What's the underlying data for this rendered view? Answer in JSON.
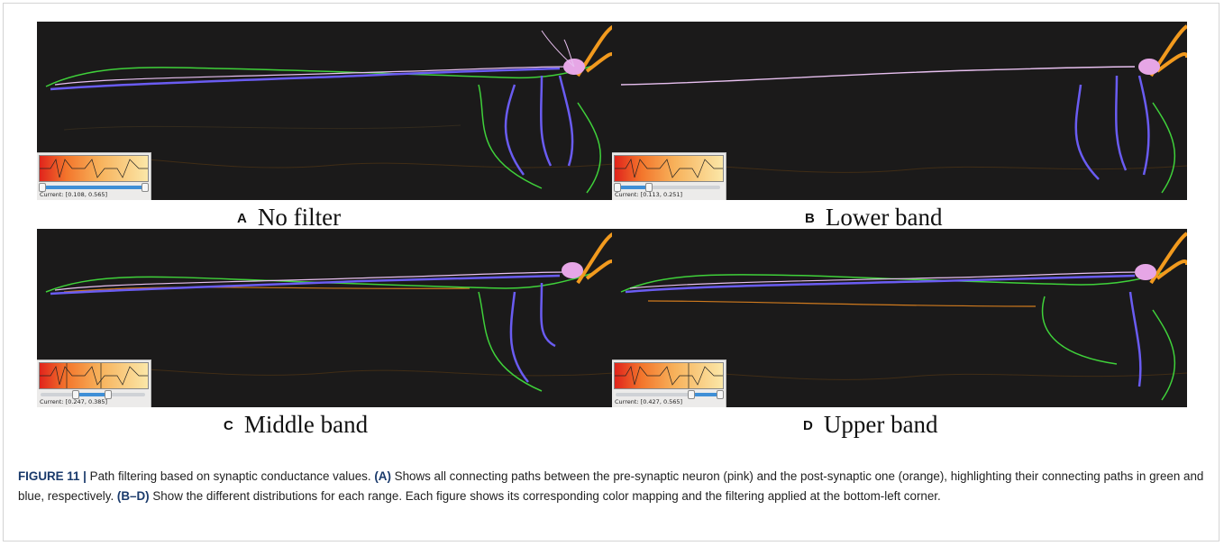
{
  "panels": [
    {
      "letter": "A",
      "title": "No filter",
      "current": "Current: [0.108, 0.565]",
      "range": [
        0.108,
        0.565
      ]
    },
    {
      "letter": "B",
      "title": "Lower band",
      "current": "Current: [0.113, 0.251]",
      "range": [
        0.113,
        0.251
      ]
    },
    {
      "letter": "C",
      "title": "Middle band",
      "current": "Current: [0.247, 0.385]",
      "range": [
        0.247,
        0.385
      ]
    },
    {
      "letter": "D",
      "title": "Upper band",
      "current": "Current: [0.427, 0.565]",
      "range": [
        0.427,
        0.565
      ]
    }
  ],
  "caption": {
    "figure_label": "FIGURE 11 |",
    "title": "Path filtering based on synaptic conductance values.",
    "ref_a": "(A)",
    "text_a": "Shows all connecting paths between the pre-synaptic neuron (pink) and the post-synaptic one (orange), highlighting their connecting paths in green and blue, respectively.",
    "ref_bd": "(B–D)",
    "text_bd": "Show the different distributions for each range. Each figure shows its corresponding color mapping and the filtering applied at the bottom-left corner."
  },
  "colors": {
    "background": "#1b1a1a",
    "pre_synaptic": "#e6a6e6",
    "post_synaptic": "#f29a1e",
    "path_green": "#3fd13a",
    "path_blue": "#6a5cf2"
  }
}
